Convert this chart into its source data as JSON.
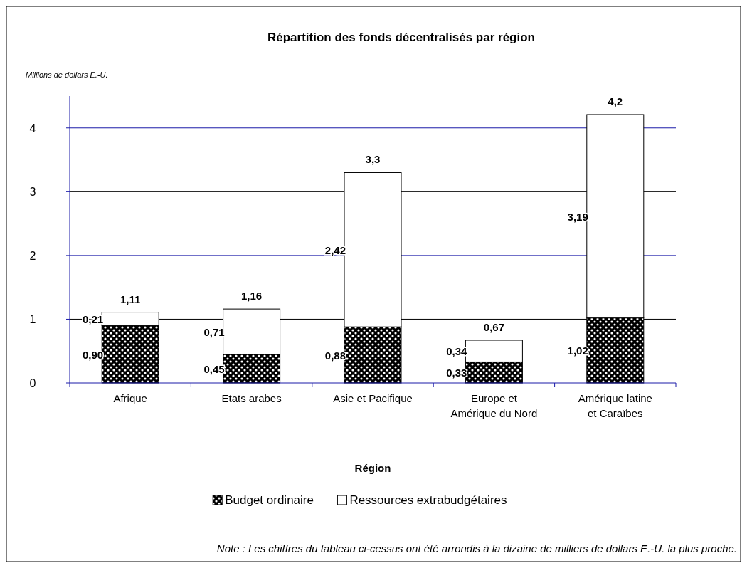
{
  "chart_data": {
    "type": "bar",
    "stacked": true,
    "title": "Répartition des fonds décentralisés par région",
    "ylabel": "Millions de dollars E.-U.",
    "xlabel": "Région",
    "categories": [
      "Afrique",
      "Etats arabes",
      "Asie et Pacifique",
      "Europe et Amérique du Nord",
      "Amérique latine et Caraïbes"
    ],
    "series": [
      {
        "name": "Budget ordinaire",
        "color": "#000000",
        "values": [
          0.9,
          0.45,
          0.88,
          0.33,
          1.02
        ],
        "value_labels": [
          "0,90",
          "0,45",
          "0,88",
          "0,33",
          "1,02"
        ]
      },
      {
        "name": "Ressources extrabudgétaires",
        "color": "#ffffff",
        "values": [
          0.21,
          0.71,
          2.42,
          0.34,
          3.19
        ],
        "value_labels": [
          "0,21",
          "0,71",
          "2,42",
          "0,34",
          "3,19"
        ]
      }
    ],
    "totals": [
      "1,11",
      "1,16",
      "3,3",
      "0,67",
      "4,2"
    ],
    "ylim": [
      0,
      4.5
    ],
    "yticks": [
      0,
      1,
      2,
      3,
      4
    ],
    "grid": "y",
    "legend": "bottom",
    "annotations": [
      "Note : Les chiffres du tableau ci-cessus ont été arrondis à la dizaine de milliers de dollars E.-U. la plus proche."
    ]
  }
}
